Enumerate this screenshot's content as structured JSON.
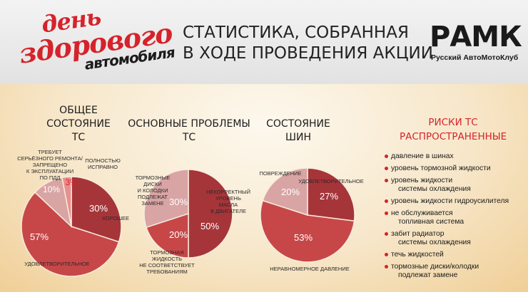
{
  "header": {
    "logo_line1": "день",
    "logo_line2": "здорового",
    "logo_line3": "автомобиля",
    "title_line1": "СТАТИСТИКА, СОБРАННАЯ",
    "title_line2": "В ХОДЕ ПРОВЕДЕНИЯ АКЦИИ",
    "brand": "РАМК",
    "brand_sub": "Русский АвтоМотоКлуб"
  },
  "sections": {
    "general_title": [
      "ОБЩЕЕ",
      "СОСТОЯНИЕ",
      "ТС"
    ],
    "problems_title": [
      "ОСНОВНЫЕ ПРОБЛЕМЫ",
      "ТС"
    ],
    "tires_title": [
      "СОСТОЯНИЕ",
      "ШИН"
    ],
    "risks_title": [
      "РИСКИ ТС",
      "РАСПРОСТРАНЕННЫЕ"
    ]
  },
  "risks": {
    "items": [
      [
        "давление в шинах"
      ],
      [
        "уровень тормозной жидкости"
      ],
      [
        "уровень жидкости",
        "системы охлаждения"
      ],
      [
        "уровень жидкости гидроусилителя"
      ],
      [
        "не обслуживается",
        "топливная система"
      ],
      [
        "забит радиатор",
        "системы охлаждения"
      ],
      [
        "течь жидкостей"
      ],
      [
        "тормозные диски/колодки",
        "подлежат замене"
      ]
    ]
  },
  "colors": {
    "accent": "#d5232b",
    "dark_red": "#a6353a",
    "mid_red": "#c74749",
    "light_pink": "#d9a4a4"
  },
  "chart_data": [
    {
      "type": "pie",
      "title": "ОБЩЕЕ СОСТОЯНИЕ ТС",
      "slices": [
        {
          "label": [
            "ХОРОШЕЕ"
          ],
          "value": 30,
          "display": "30%",
          "color": "#a6353a"
        },
        {
          "label": [
            "УДОВЛЕТВОРИТЕЛЬНОЕ"
          ],
          "value": 57,
          "display": "57%",
          "color": "#c74749"
        },
        {
          "label": [
            "ТРЕБУЕТ",
            "СЕРЬЁЗНОГО РЕМОНТА/",
            "ЗАПРЕЩЕНО",
            "К ЭКСПЛУАТАЦИИ",
            "ПО ПДД"
          ],
          "value": 10,
          "display": "10%",
          "color": "#d9a4a4"
        },
        {
          "label": [
            "ПОЛНОСТЬЮ",
            "ИСПРАВНО"
          ],
          "value": 3,
          "display": "3%",
          "color": "#ea8f8f"
        }
      ]
    },
    {
      "type": "pie",
      "title": "ОСНОВНЫЕ ПРОБЛЕМЫ ТС",
      "slices": [
        {
          "label": [
            "НЕКОРРЕКТНЫЙ",
            "УРОВЕНЬ",
            "МАСЛА",
            "В ДВИГАТЕЛЕ"
          ],
          "value": 50,
          "display": "50%",
          "color": "#a6353a"
        },
        {
          "label": [
            "ТОРМОЗНАЯ",
            "ЖИДКОСТЬ",
            "НЕ СООТВЕТСТВУЕТ",
            "ТРЕБОВАНИЯМ"
          ],
          "value": 20,
          "display": "20%",
          "color": "#c74749"
        },
        {
          "label": [
            "ТОРМОЗНЫЕ",
            "ДИСКИ",
            "И КОЛОДКИ",
            "ПОДЛЕЖАТ",
            "ЗАМЕНЕ"
          ],
          "value": 30,
          "display": "30%",
          "color": "#d9a4a4"
        }
      ]
    },
    {
      "type": "pie",
      "title": "СОСТОЯНИЕ ШИН",
      "slices": [
        {
          "label": [
            "УДОВЛЕТВОРИТЕЛЬНОЕ"
          ],
          "value": 27,
          "display": "27%",
          "color": "#a6353a"
        },
        {
          "label": [
            "НЕРАВНОМЕРНОЕ ДАВЛЕНИЕ"
          ],
          "value": 53,
          "display": "53%",
          "color": "#c74749"
        },
        {
          "label": [
            "ПОВРЕЖДЕНИЕ"
          ],
          "value": 20,
          "display": "20%",
          "color": "#d9a4a4"
        }
      ]
    }
  ]
}
